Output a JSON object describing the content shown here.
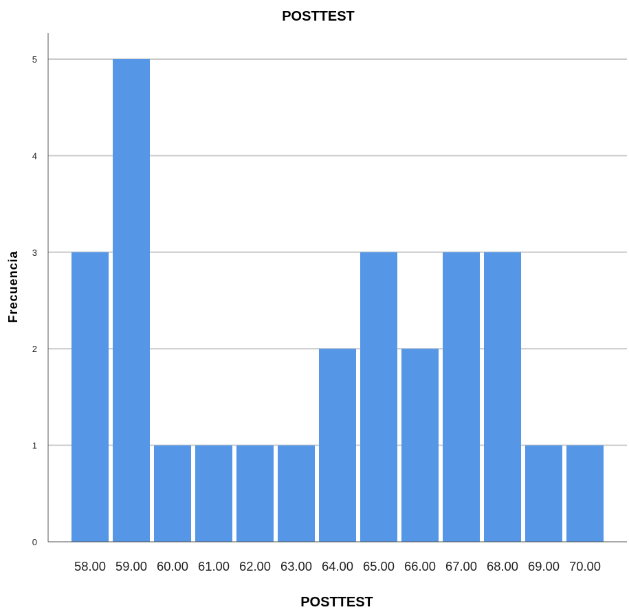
{
  "chart_data": {
    "type": "bar",
    "title": "POSTTEST",
    "xlabel": "POSTTEST",
    "ylabel": "Frecuencia",
    "categories": [
      "58.00",
      "59.00",
      "60.00",
      "61.00",
      "62.00",
      "63.00",
      "64.00",
      "65.00",
      "66.00",
      "67.00",
      "68.00",
      "69.00",
      "70.00"
    ],
    "values": [
      3,
      5,
      1,
      1,
      1,
      1,
      2,
      3,
      2,
      3,
      3,
      1,
      1
    ],
    "ylim": [
      0,
      5
    ],
    "yticks": [
      "0",
      "1",
      "2",
      "3",
      "4",
      "5"
    ],
    "grid": true,
    "colors": {
      "bar": "#5596e6",
      "grid": "#c9c9c9",
      "axis": "#555555"
    }
  }
}
